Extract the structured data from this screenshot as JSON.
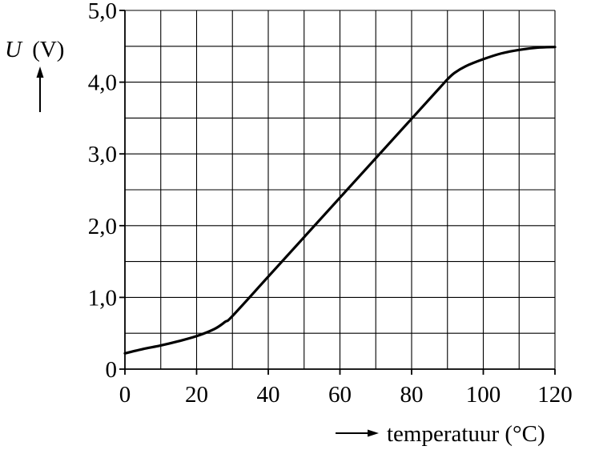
{
  "chart_data": {
    "type": "line",
    "title": "",
    "xlabel": "temperatuur (°C)",
    "ylabel_symbol": "U",
    "ylabel_unit": "(V)",
    "xlim": [
      0,
      120
    ],
    "ylim": [
      0,
      5
    ],
    "x_ticks": [
      0,
      20,
      40,
      60,
      80,
      100,
      120
    ],
    "x_tick_labels": [
      "0",
      "20",
      "40",
      "60",
      "80",
      "100",
      "120"
    ],
    "y_ticks": [
      0,
      1,
      2,
      3,
      4,
      5
    ],
    "y_tick_labels": [
      "0",
      "1,0",
      "2,0",
      "3,0",
      "4,0",
      "5,0"
    ],
    "x_grid_step": 10,
    "y_grid_step": 0.5,
    "grid": true,
    "series": [
      {
        "x": [
          0,
          5,
          10,
          15,
          20,
          25,
          28,
          30,
          40,
          50,
          60,
          70,
          80,
          88,
          90,
          92,
          95,
          100,
          105,
          110,
          115,
          120
        ],
        "values": [
          0.22,
          0.28,
          0.33,
          0.39,
          0.46,
          0.56,
          0.66,
          0.74,
          1.29,
          1.84,
          2.39,
          2.94,
          3.49,
          3.93,
          4.04,
          4.13,
          4.22,
          4.32,
          4.4,
          4.45,
          4.48,
          4.49
        ]
      }
    ],
    "colors": {
      "line": "#000000",
      "grid": "#000000",
      "background": "#ffffff"
    }
  }
}
